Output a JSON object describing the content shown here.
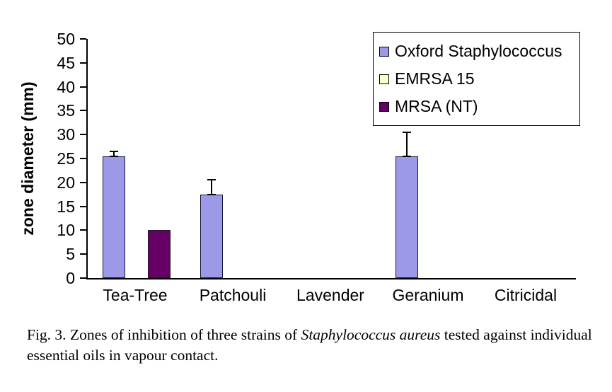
{
  "chart_data": {
    "type": "bar",
    "title": "",
    "xlabel": "",
    "ylabel": "zone diameter (mm)",
    "ylim": [
      0,
      50
    ],
    "ytick_step": 5,
    "grid": false,
    "legend_position": "top-right",
    "categories": [
      "Tea-Tree",
      "Patchouli",
      "Lavender",
      "Geranium",
      "Citricidal"
    ],
    "series": [
      {
        "name": "Oxford Staphylococcus",
        "color": "#9c9ae8",
        "border_color": "#14143c",
        "values": [
          25.5,
          17.5,
          0,
          25.5,
          0
        ],
        "errors": [
          1,
          3,
          0,
          5,
          0
        ]
      },
      {
        "name": "EMRSA 15",
        "color": "#ffffcc",
        "border_color": "#1a1a1a",
        "values": [
          0,
          0,
          0,
          0,
          0
        ],
        "errors": [
          0,
          0,
          0,
          0,
          0
        ]
      },
      {
        "name": "MRSA (NT)",
        "color": "#660066",
        "border_color": "#1a1a1a",
        "values": [
          10,
          0,
          0,
          0,
          0
        ],
        "errors": [
          0,
          0,
          0,
          0,
          0
        ]
      }
    ]
  },
  "caption": {
    "label": "Fig. 3.",
    "part1": " Zones of inhibition of three strains of ",
    "italic": "Staphylococcus aureus",
    "part2": " tested against individual essential oils in vapour contact."
  }
}
